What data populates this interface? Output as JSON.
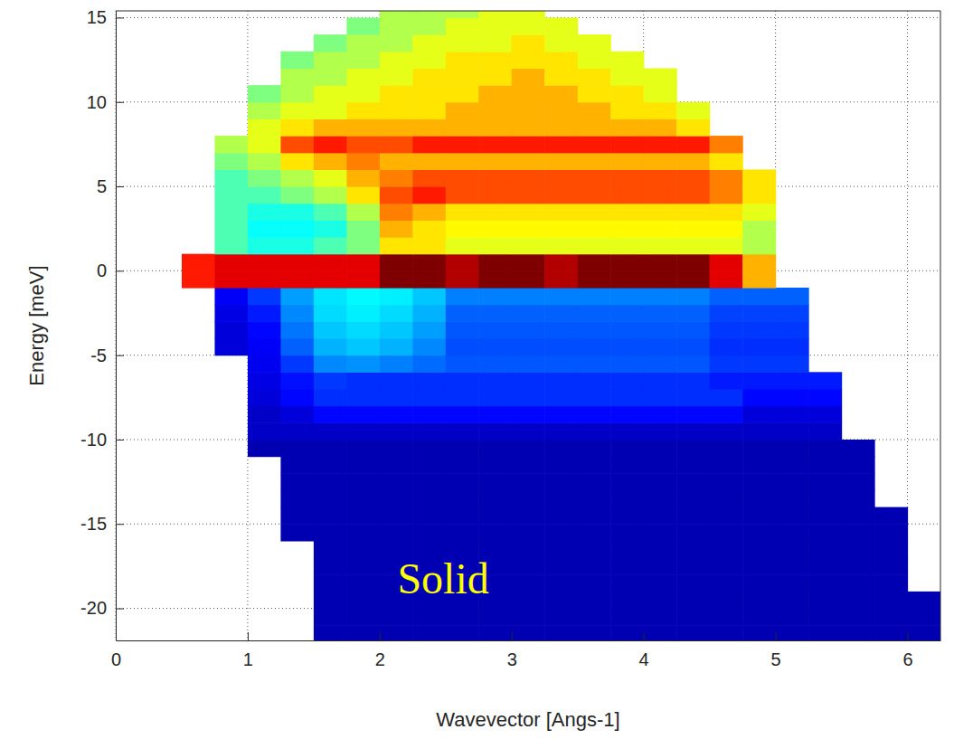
{
  "chart_data": {
    "type": "heatmap",
    "xlabel": "Wavevector [Angs-1]",
    "ylabel": "Energy [meV]",
    "annotations": [
      {
        "text": "Solid"
      }
    ],
    "xlim": [
      0,
      6.25
    ],
    "ylim": [
      -21.9,
      15.4
    ],
    "xticks": [
      0,
      1,
      2,
      3,
      4,
      5,
      6
    ],
    "yticks": [
      -20,
      -15,
      -10,
      -5,
      0,
      5,
      10,
      15
    ],
    "grid": true,
    "zlim": [
      0,
      10
    ],
    "x": [
      0.5,
      0.75,
      1,
      1.25,
      1.5,
      1.75,
      2,
      2.25,
      2.5,
      2.75,
      3,
      3.25,
      3.5,
      3.75,
      4,
      4.25,
      4.5,
      4.75,
      5,
      5.25,
      5.5,
      5.75,
      6,
      6.25
    ],
    "y": [
      -22,
      -21,
      -20,
      -19,
      -18,
      -17,
      -16,
      -15,
      -14,
      -13,
      -12,
      -11,
      -10,
      -9,
      -8,
      -7,
      -6,
      -5,
      -4,
      -3,
      -2,
      -1,
      0,
      1,
      2,
      3,
      4,
      5,
      6,
      7,
      8,
      9,
      10,
      11,
      12,
      13,
      14,
      15,
      16
    ],
    "z": [
      [
        null,
        null,
        null,
        null,
        0.5,
        0.5,
        0.5,
        0.5,
        0.5,
        0.5,
        0.5,
        0.5,
        0.5,
        0.5,
        0.5,
        0.5,
        0.5,
        0.5,
        0.5,
        0.5,
        0.5,
        0.5,
        0.5
      ],
      [
        null,
        null,
        null,
        null,
        0.5,
        0.5,
        0.5,
        0.5,
        0.5,
        0.5,
        0.5,
        0.5,
        0.5,
        0.5,
        0.5,
        0.5,
        0.5,
        0.5,
        0.5,
        0.5,
        0.5,
        0.5,
        0.5
      ],
      [
        null,
        null,
        null,
        null,
        0.5,
        0.5,
        0.5,
        0.5,
        0.5,
        0.5,
        0.5,
        0.5,
        0.5,
        0.5,
        0.5,
        0.5,
        0.5,
        0.5,
        0.5,
        0.5,
        0.5,
        0.5,
        0.5
      ],
      [
        null,
        null,
        null,
        null,
        0.5,
        0.5,
        0.5,
        0.5,
        0.5,
        0.5,
        0.5,
        0.5,
        0.5,
        0.5,
        0.5,
        0.5,
        0.5,
        0.5,
        0.5,
        0.5,
        0.5,
        0.5,
        null
      ],
      [
        null,
        null,
        null,
        null,
        0.5,
        0.5,
        0.5,
        0.5,
        0.5,
        0.5,
        0.5,
        0.5,
        0.5,
        0.5,
        0.5,
        0.5,
        0.5,
        0.5,
        0.5,
        0.5,
        0.5,
        0.5,
        null
      ],
      [
        null,
        null,
        null,
        null,
        0.5,
        0.5,
        0.5,
        0.5,
        0.5,
        0.5,
        0.5,
        0.5,
        0.5,
        0.5,
        0.5,
        0.5,
        0.5,
        0.5,
        0.5,
        0.5,
        0.5,
        0.5,
        null
      ],
      [
        null,
        null,
        null,
        0.5,
        0.5,
        0.5,
        0.5,
        0.5,
        0.5,
        0.5,
        0.5,
        0.5,
        0.5,
        0.5,
        0.5,
        0.5,
        0.5,
        0.5,
        0.5,
        0.5,
        0.5,
        0.5,
        null
      ],
      [
        null,
        null,
        null,
        0.5,
        0.5,
        0.5,
        0.5,
        0.5,
        0.5,
        0.5,
        0.5,
        0.5,
        0.5,
        0.5,
        0.5,
        0.5,
        0.5,
        0.5,
        0.5,
        0.5,
        0.5,
        0.5,
        null
      ],
      [
        null,
        null,
        null,
        0.5,
        0.5,
        0.5,
        0.5,
        0.5,
        0.5,
        0.5,
        0.5,
        0.5,
        0.5,
        0.5,
        0.5,
        0.5,
        0.5,
        0.5,
        0.5,
        0.5,
        0.5,
        null,
        null
      ],
      [
        null,
        null,
        null,
        0.5,
        0.5,
        0.5,
        0.5,
        0.5,
        0.5,
        0.5,
        0.5,
        0.5,
        0.5,
        0.5,
        0.5,
        0.5,
        0.5,
        0.5,
        0.5,
        0.5,
        0.5,
        null,
        null
      ],
      [
        null,
        null,
        null,
        0.5,
        0.5,
        0.5,
        0.5,
        0.5,
        0.5,
        0.5,
        0.5,
        0.5,
        0.5,
        0.5,
        0.5,
        0.5,
        0.5,
        0.5,
        0.5,
        0.5,
        0.5,
        null,
        null
      ],
      [
        null,
        null,
        0.5,
        0.5,
        0.5,
        0.5,
        0.5,
        0.5,
        0.5,
        0.5,
        0.5,
        0.5,
        0.5,
        0.5,
        0.5,
        0.5,
        0.5,
        0.5,
        0.5,
        0.5,
        0.5,
        null,
        null
      ],
      [
        null,
        null,
        0.7,
        0.7,
        0.7,
        0.7,
        0.7,
        0.7,
        0.7,
        0.7,
        0.7,
        0.7,
        0.7,
        0.7,
        0.7,
        0.7,
        0.7,
        0.7,
        0.7,
        0.7,
        null,
        null,
        null
      ],
      [
        null,
        null,
        0.7,
        0.9,
        1.3,
        1.3,
        1.3,
        1.3,
        1.3,
        1.3,
        1.3,
        1.3,
        1.3,
        1.3,
        1.3,
        1.3,
        1.3,
        0.9,
        0.9,
        0.9,
        null,
        null,
        null
      ],
      [
        null,
        null,
        0.9,
        1.3,
        1.7,
        1.7,
        1.7,
        1.7,
        1.7,
        1.7,
        1.7,
        1.7,
        1.7,
        1.7,
        1.7,
        1.7,
        1.7,
        1.3,
        1.3,
        1.3,
        null,
        null,
        null
      ],
      [
        null,
        null,
        1.0,
        1.4,
        1.8,
        1.7,
        1.7,
        1.7,
        1.7,
        1.7,
        1.7,
        1.7,
        1.7,
        1.7,
        1.7,
        1.7,
        1.5,
        1.5,
        1.5,
        1.5,
        null,
        null,
        null
      ],
      [
        null,
        null,
        1.1,
        1.8,
        2.6,
        2.7,
        2.5,
        2.3,
        2.1,
        2.1,
        2.1,
        2.1,
        2.1,
        2.1,
        2.1,
        2.1,
        1.8,
        1.8,
        1.8,
        null,
        null,
        null,
        null
      ],
      [
        null,
        0.9,
        1.2,
        2.2,
        3.0,
        3.2,
        3.0,
        2.6,
        2.0,
        2.0,
        2.0,
        2.0,
        2.0,
        2.0,
        2.0,
        2.0,
        1.7,
        1.7,
        1.7,
        null,
        null,
        null,
        null
      ],
      [
        null,
        0.9,
        1.3,
        2.4,
        3.2,
        3.4,
        3.2,
        2.8,
        2.1,
        2.1,
        2.1,
        2.1,
        2.1,
        2.1,
        2.1,
        2.1,
        1.8,
        1.8,
        1.8,
        null,
        null,
        null,
        null
      ],
      [
        null,
        1.0,
        1.5,
        2.6,
        3.4,
        3.6,
        3.4,
        3.0,
        2.2,
        2.2,
        2.2,
        2.2,
        2.2,
        2.2,
        2.2,
        2.2,
        1.9,
        1.9,
        1.9,
        null,
        null,
        null,
        null
      ],
      [
        null,
        1.2,
        1.8,
        2.8,
        3.5,
        3.7,
        3.6,
        3.2,
        2.5,
        2.5,
        2.5,
        2.5,
        2.5,
        2.5,
        2.5,
        2.5,
        2.2,
        2.2,
        2.2,
        null,
        null,
        null,
        null
      ],
      [
        8.5,
        9,
        9,
        9,
        9,
        9,
        10,
        10,
        9.5,
        10,
        10,
        9.5,
        10,
        10,
        10,
        10,
        9,
        7,
        null,
        null,
        null,
        null,
        null
      ],
      [
        8.5,
        9,
        9,
        9,
        9,
        9,
        10,
        10,
        9.5,
        10,
        10,
        9.5,
        10,
        10,
        10,
        10,
        9,
        7,
        null,
        null,
        null,
        null,
        null
      ],
      [
        null,
        4.5,
        4,
        4,
        4.5,
        5,
        6.5,
        6.5,
        6,
        6,
        6,
        6,
        6,
        6,
        6,
        6,
        6,
        5.5,
        null,
        null,
        null,
        null,
        null
      ],
      [
        null,
        4.5,
        3.8,
        3.8,
        4,
        5,
        7,
        6.5,
        6.3,
        6.3,
        6.3,
        6.3,
        6.3,
        6.3,
        6.3,
        6.3,
        6.3,
        5.5,
        null,
        null,
        null,
        null,
        null
      ],
      [
        null,
        4.5,
        4,
        4,
        4.5,
        5.5,
        7.5,
        7,
        6.5,
        6.5,
        6.5,
        6.5,
        6.5,
        6.5,
        6.5,
        6.5,
        6.5,
        6,
        null,
        null,
        null,
        null,
        null
      ],
      [
        null,
        4.5,
        4.5,
        5,
        5.5,
        6.5,
        8,
        8.5,
        8,
        8,
        8,
        8,
        8,
        8,
        8,
        8,
        7.5,
        6.5,
        null,
        null,
        null,
        null,
        null
      ],
      [
        null,
        4.5,
        5,
        5.5,
        6,
        7,
        7.5,
        8,
        8,
        8,
        8,
        8,
        8,
        8,
        8,
        8,
        7.5,
        6.5,
        null,
        null,
        null,
        null,
        null
      ],
      [
        null,
        5,
        5.5,
        6.5,
        7,
        7.5,
        7,
        7,
        7,
        7,
        7,
        7,
        7,
        7,
        7,
        7,
        6.5,
        null,
        null,
        null,
        null,
        null,
        null
      ],
      [
        null,
        5.5,
        6,
        8,
        8.5,
        8,
        8,
        8.5,
        8.5,
        8.5,
        8.5,
        8.5,
        8.5,
        8.5,
        8.5,
        8.5,
        7.5,
        null,
        null,
        null,
        null,
        null,
        null
      ],
      [
        null,
        null,
        6,
        6.5,
        7,
        7,
        7,
        7,
        7,
        7,
        7,
        7,
        7,
        7,
        7,
        6.5,
        null,
        null,
        null,
        null,
        null,
        null,
        null
      ],
      [
        null,
        null,
        5.5,
        6,
        6,
        6.5,
        6.5,
        6.5,
        7,
        7,
        7,
        7,
        7,
        6.5,
        6.5,
        6,
        null,
        null,
        null,
        null,
        null,
        null,
        null
      ],
      [
        null,
        null,
        5,
        5.5,
        6,
        6,
        6.5,
        6.5,
        6.5,
        7,
        7,
        7,
        6.5,
        6.5,
        6,
        null,
        null,
        null,
        null,
        null,
        null,
        null,
        null
      ],
      [
        null,
        null,
        null,
        5.5,
        5.5,
        6,
        6,
        6.5,
        6.5,
        6.5,
        7,
        6.5,
        6.5,
        6,
        6,
        null,
        null,
        null,
        null,
        null,
        null,
        null,
        null
      ],
      [
        null,
        null,
        null,
        5,
        5.5,
        5.5,
        6,
        6,
        6.5,
        6.5,
        6.5,
        6.5,
        6,
        6,
        null,
        null,
        null,
        null,
        null,
        null,
        null,
        null,
        null
      ],
      [
        null,
        null,
        null,
        null,
        5,
        5.5,
        5.5,
        6,
        6,
        6,
        6.5,
        6,
        6,
        null,
        null,
        null,
        null,
        null,
        null,
        null,
        null,
        null,
        null
      ],
      [
        null,
        null,
        null,
        null,
        null,
        5,
        5.5,
        5.5,
        6,
        6,
        6,
        6,
        null,
        null,
        null,
        null,
        null,
        null,
        null,
        null,
        null,
        null,
        null
      ],
      [
        null,
        null,
        null,
        null,
        null,
        null,
        5.5,
        5.5,
        5.5,
        6,
        6,
        null,
        null,
        null,
        null,
        null,
        null,
        null,
        null,
        null,
        null,
        null,
        null
      ]
    ]
  }
}
